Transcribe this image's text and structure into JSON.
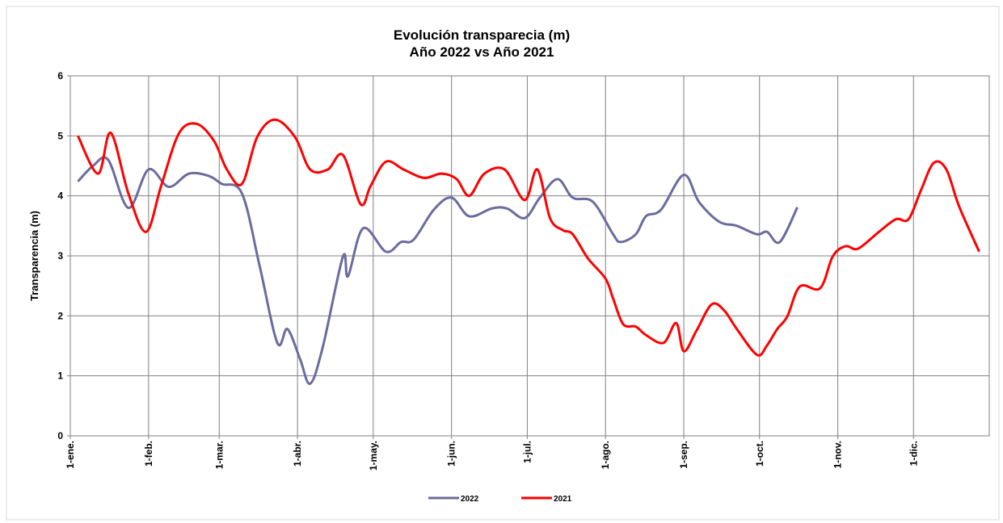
{
  "chart_data": {
    "type": "line",
    "title": "Evolución transparecia (m)",
    "subtitle": "Año 2022 vs Año 2021",
    "y_label": "Transparencia (m)",
    "xlim": [
      0,
      364
    ],
    "xticks": [
      {
        "value": 0,
        "label": "1-ene."
      },
      {
        "value": 31,
        "label": "1-feb."
      },
      {
        "value": 59,
        "label": "1-mar."
      },
      {
        "value": 90,
        "label": "1-abr."
      },
      {
        "value": 120,
        "label": "1-may."
      },
      {
        "value": 151,
        "label": "1-jun."
      },
      {
        "value": 181,
        "label": "1-jul."
      },
      {
        "value": 212,
        "label": "1-ago."
      },
      {
        "value": 243,
        "label": "1-sep."
      },
      {
        "value": 273,
        "label": "1-oct."
      },
      {
        "value": 304,
        "label": "1-nov."
      },
      {
        "value": 334,
        "label": "1-dic."
      }
    ],
    "ylim": [
      0,
      6
    ],
    "yticks": [
      0,
      1,
      2,
      3,
      4,
      5,
      6
    ],
    "grid": true,
    "smooth": true,
    "legend": "bottom",
    "series": [
      {
        "name": "2022",
        "color": "#6b6b9e",
        "x": [
          3,
          9,
          15,
          23,
          31,
          39,
          47,
          55,
          60,
          68,
          75,
          82,
          86,
          91,
          95,
          100,
          108,
          110,
          116,
          125,
          131,
          136,
          144,
          151,
          158,
          167,
          173,
          180,
          186,
          193,
          199,
          207,
          215,
          218,
          224,
          228,
          234,
          243,
          249,
          257,
          264,
          272,
          276,
          281,
          288
        ],
        "values": [
          4.24,
          4.5,
          4.6,
          3.8,
          4.44,
          4.15,
          4.37,
          4.33,
          4.2,
          4.04,
          2.83,
          1.55,
          1.78,
          1.28,
          0.87,
          1.48,
          2.99,
          2.66,
          3.46,
          3.07,
          3.23,
          3.27,
          3.77,
          3.97,
          3.66,
          3.79,
          3.79,
          3.63,
          3.97,
          4.28,
          3.97,
          3.9,
          3.36,
          3.23,
          3.36,
          3.66,
          3.77,
          4.35,
          3.9,
          3.57,
          3.5,
          3.36,
          3.4,
          3.23,
          3.81
        ]
      },
      {
        "name": "2021",
        "color": "#ff0000",
        "x": [
          3,
          11,
          16,
          23,
          30,
          36,
          43,
          50,
          57,
          62,
          68,
          74,
          81,
          89,
          95,
          102,
          108,
          115,
          119,
          125,
          132,
          140,
          147,
          153,
          158,
          164,
          172,
          180,
          185,
          190,
          195,
          199,
          205,
          212,
          215,
          219,
          224,
          228,
          235,
          240,
          243,
          248,
          254,
          259,
          264,
          272,
          276,
          280,
          284,
          289,
          297,
          302,
          307,
          312,
          320,
          327,
          332,
          337,
          342,
          347,
          352,
          360
        ],
        "values": [
          5.0,
          4.37,
          5.05,
          4.04,
          3.4,
          4.17,
          5.04,
          5.2,
          4.91,
          4.44,
          4.2,
          4.98,
          5.27,
          4.98,
          4.44,
          4.44,
          4.68,
          3.86,
          4.17,
          4.57,
          4.44,
          4.3,
          4.37,
          4.28,
          4.0,
          4.37,
          4.44,
          3.93,
          4.44,
          3.63,
          3.43,
          3.36,
          2.96,
          2.62,
          2.29,
          1.86,
          1.82,
          1.68,
          1.55,
          1.88,
          1.41,
          1.75,
          2.19,
          2.09,
          1.78,
          1.35,
          1.51,
          1.78,
          1.99,
          2.49,
          2.46,
          2.99,
          3.16,
          3.12,
          3.39,
          3.61,
          3.61,
          4.1,
          4.55,
          4.44,
          3.83,
          3.07
        ]
      }
    ]
  }
}
